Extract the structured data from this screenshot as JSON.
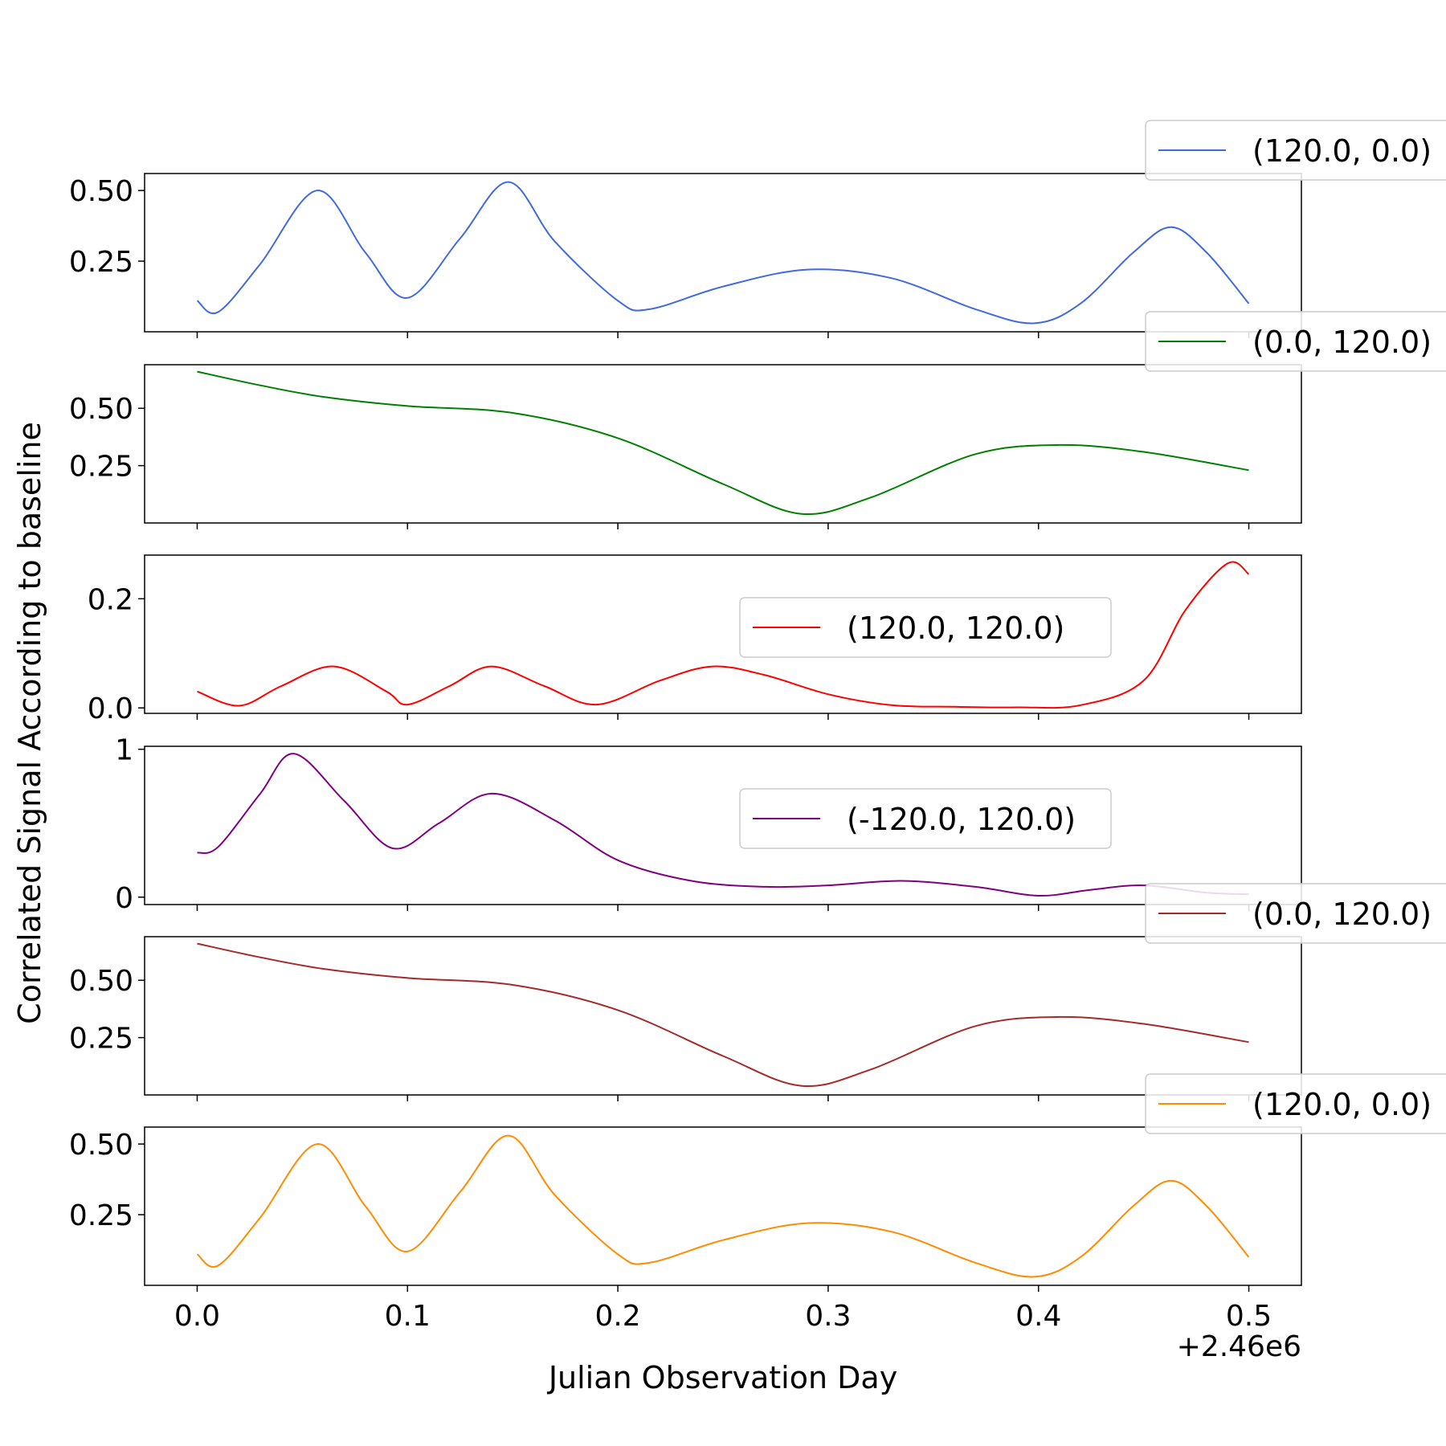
{
  "chart_data": {
    "type": "line",
    "xlabel": "Julian Observation Day",
    "ylabel": "Correlated Signal According to baseline",
    "x_offset_label": "+2.46e6",
    "xlim": [
      -0.025,
      0.525
    ],
    "x_ticks": [
      0.0,
      0.1,
      0.2,
      0.3,
      0.4,
      0.5
    ],
    "x_tick_labels": [
      "0.0",
      "0.1",
      "0.2",
      "0.3",
      "0.4",
      "0.5"
    ],
    "subplots": [
      {
        "series_name": "(120.0, 0.0)",
        "color": "#4169e1",
        "ylim": [
          0.0,
          0.56
        ],
        "y_ticks": [
          0.25,
          0.5
        ],
        "y_tick_labels": [
          "0.25",
          "0.50"
        ],
        "legend_position": "upper-right-outside",
        "x": [
          0.0,
          0.01,
          0.03,
          0.057,
          0.08,
          0.1,
          0.125,
          0.148,
          0.17,
          0.2,
          0.215,
          0.25,
          0.29,
          0.33,
          0.37,
          0.398,
          0.42,
          0.445,
          0.463,
          0.48,
          0.5
        ],
        "y": [
          0.11,
          0.07,
          0.24,
          0.5,
          0.28,
          0.12,
          0.33,
          0.53,
          0.32,
          0.11,
          0.08,
          0.16,
          0.22,
          0.19,
          0.08,
          0.03,
          0.1,
          0.28,
          0.37,
          0.28,
          0.1
        ]
      },
      {
        "series_name": "(0.0, 120.0)",
        "color": "#008000",
        "ylim": [
          0.0,
          0.69
        ],
        "y_ticks": [
          0.25,
          0.5
        ],
        "y_tick_labels": [
          "0.25",
          "0.50"
        ],
        "legend_position": "upper-right-outside",
        "x": [
          0.0,
          0.03,
          0.06,
          0.1,
          0.15,
          0.2,
          0.25,
          0.287,
          0.32,
          0.37,
          0.41,
          0.45,
          0.5
        ],
        "y": [
          0.66,
          0.6,
          0.55,
          0.51,
          0.48,
          0.37,
          0.17,
          0.04,
          0.11,
          0.3,
          0.34,
          0.31,
          0.23
        ]
      },
      {
        "series_name": "(120.0, 120.0)",
        "color": "#ff0000",
        "ylim": [
          -0.01,
          0.28
        ],
        "y_ticks": [
          0.0,
          0.2
        ],
        "y_tick_labels": [
          "0.0",
          "0.2"
        ],
        "legend_position": "center-right",
        "x": [
          0.0,
          0.02,
          0.04,
          0.065,
          0.09,
          0.1,
          0.12,
          0.14,
          0.165,
          0.19,
          0.22,
          0.245,
          0.27,
          0.3,
          0.33,
          0.36,
          0.39,
          0.42,
          0.45,
          0.47,
          0.49,
          0.5
        ],
        "y": [
          0.03,
          0.004,
          0.04,
          0.076,
          0.03,
          0.006,
          0.04,
          0.076,
          0.04,
          0.006,
          0.05,
          0.076,
          0.06,
          0.025,
          0.005,
          0.002,
          0.001,
          0.005,
          0.05,
          0.18,
          0.265,
          0.245
        ]
      },
      {
        "series_name": "(-120.0, 120.0)",
        "color": "#800080",
        "ylim": [
          -0.05,
          1.02
        ],
        "y_ticks": [
          0,
          1
        ],
        "y_tick_labels": [
          "0",
          "1"
        ],
        "legend_position": "center-right",
        "x": [
          0.0,
          0.01,
          0.03,
          0.046,
          0.07,
          0.093,
          0.115,
          0.14,
          0.17,
          0.2,
          0.235,
          0.27,
          0.3,
          0.335,
          0.37,
          0.4,
          0.425,
          0.45,
          0.48,
          0.5
        ],
        "y": [
          0.3,
          0.34,
          0.7,
          0.97,
          0.65,
          0.33,
          0.5,
          0.7,
          0.52,
          0.25,
          0.11,
          0.07,
          0.08,
          0.11,
          0.07,
          0.01,
          0.05,
          0.08,
          0.03,
          0.02
        ]
      },
      {
        "series_name": "(0.0, 120.0)",
        "color": "#a52a2a",
        "ylim": [
          0.0,
          0.69
        ],
        "y_ticks": [
          0.25,
          0.5
        ],
        "y_tick_labels": [
          "0.25",
          "0.50"
        ],
        "legend_position": "upper-right-outside",
        "x": [
          0.0,
          0.03,
          0.06,
          0.1,
          0.15,
          0.2,
          0.25,
          0.287,
          0.32,
          0.37,
          0.41,
          0.45,
          0.5
        ],
        "y": [
          0.66,
          0.6,
          0.55,
          0.51,
          0.48,
          0.37,
          0.17,
          0.04,
          0.11,
          0.3,
          0.34,
          0.31,
          0.23
        ]
      },
      {
        "series_name": "(120.0, 0.0)",
        "color": "#ff8c00",
        "ylim": [
          0.0,
          0.56
        ],
        "y_ticks": [
          0.25,
          0.5
        ],
        "y_tick_labels": [
          "0.25",
          "0.50"
        ],
        "legend_position": "upper-right-outside",
        "x": [
          0.0,
          0.01,
          0.03,
          0.057,
          0.08,
          0.1,
          0.125,
          0.148,
          0.17,
          0.2,
          0.215,
          0.25,
          0.29,
          0.33,
          0.37,
          0.398,
          0.42,
          0.445,
          0.463,
          0.48,
          0.5
        ],
        "y": [
          0.11,
          0.07,
          0.24,
          0.5,
          0.28,
          0.12,
          0.33,
          0.53,
          0.32,
          0.11,
          0.08,
          0.16,
          0.22,
          0.19,
          0.08,
          0.03,
          0.1,
          0.28,
          0.37,
          0.28,
          0.1
        ]
      }
    ]
  }
}
